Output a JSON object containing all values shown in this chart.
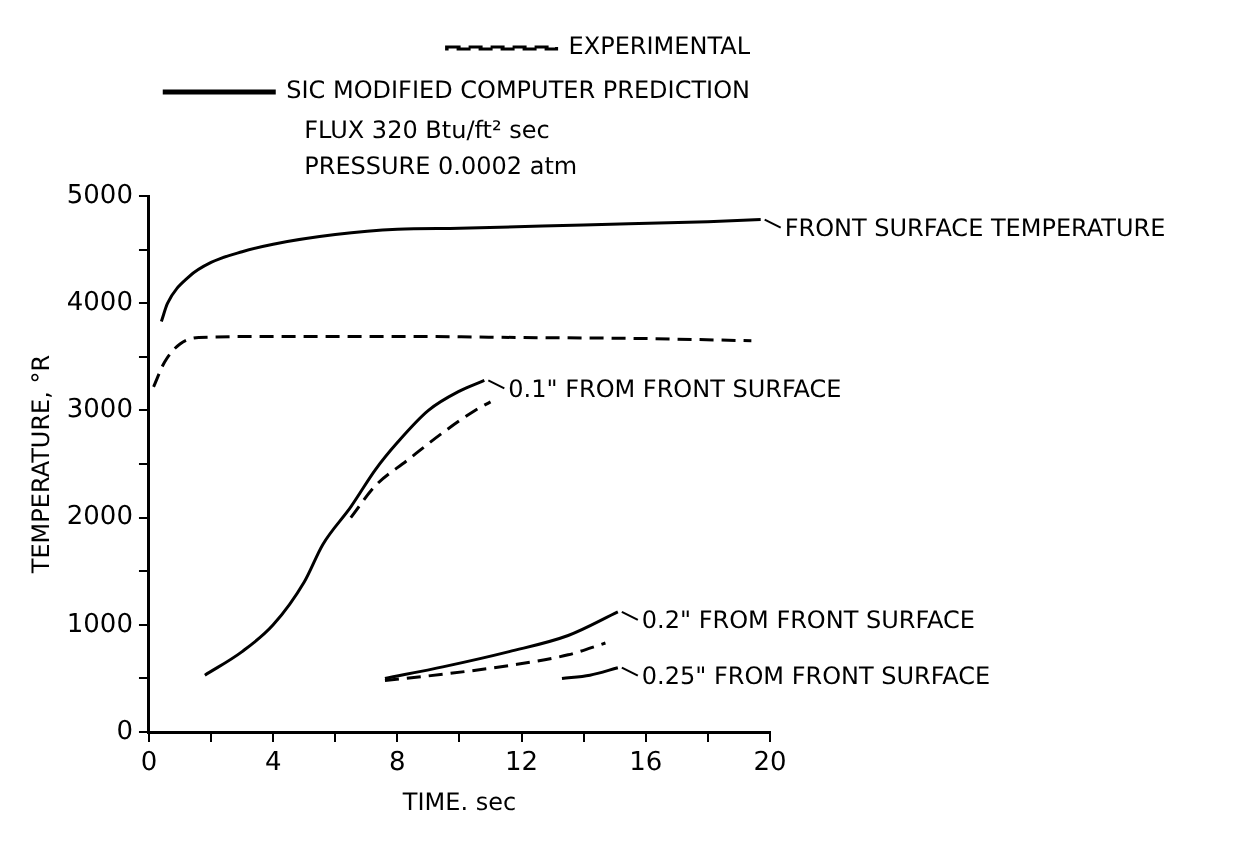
{
  "chart_data": {
    "type": "line",
    "xlabel": "TIME. sec",
    "ylabel": "TEMPERATURE, °R",
    "xlim": [
      0,
      20
    ],
    "xticks": [
      0,
      {
        "value": 2,
        "label": null
      },
      4,
      {
        "value": 6,
        "label": null
      },
      8,
      {
        "value": 10,
        "label": null
      },
      12,
      {
        "value": 14,
        "label": null
      },
      16,
      {
        "value": 18,
        "label": null
      },
      20
    ],
    "ylim": [
      0,
      5000
    ],
    "yticks": [
      0,
      {
        "value": 500,
        "label": null
      },
      1000,
      {
        "value": 1500,
        "label": null
      },
      2000,
      {
        "value": 2500,
        "label": null
      },
      3000,
      {
        "value": 3500,
        "label": null
      },
      4000,
      {
        "value": 4500,
        "label": null
      },
      5000
    ],
    "grid": false,
    "legend": "top right",
    "marker": "none",
    "series": [
      {
        "name": "EXPERIMENTAL",
        "color": "#000000",
        "line_style": "dashed",
        "x": [
          0.15,
          0.5,
          1,
          1.6,
          4,
          8,
          12,
          16,
          19.4
        ],
        "values": [
          3220,
          3450,
          3620,
          3680,
          3690,
          3690,
          3680,
          3670,
          3650
        ]
      },
      {
        "name": "SIC MODIFIED COMPUTER PREDICTION",
        "color": "#000000",
        "line_style": "solid",
        "x": [
          0.4,
          0.6,
          1.3,
          2,
          3,
          4,
          6,
          8,
          10,
          14,
          18,
          19.7
        ],
        "values": [
          3830,
          4000,
          4250,
          4380,
          4480,
          4550,
          4640,
          4690,
          4700,
          4730,
          4760,
          4780
        ]
      },
      {
        "color": "#000000",
        "line_style": "dashed",
        "x": [
          6.5,
          7.3,
          8.3,
          9.5,
          10.5,
          11
        ],
        "values": [
          2000,
          2300,
          2530,
          2800,
          3000,
          3080
        ]
      },
      {
        "color": "#000000",
        "line_style": "solid",
        "x": [
          1.8,
          3,
          4,
          5,
          5.6,
          6.5,
          7.3,
          8,
          9,
          10,
          10.8
        ],
        "values": [
          530,
          750,
          1000,
          1400,
          1750,
          2100,
          2450,
          2700,
          3000,
          3180,
          3280
        ]
      },
      {
        "color": "#000000",
        "line_style": "dashed",
        "x": [
          7.6,
          9.5,
          11.6,
          13.5,
          14.7
        ],
        "values": [
          480,
          540,
          620,
          720,
          830
        ]
      },
      {
        "color": "#000000",
        "line_style": "solid",
        "x": [
          7.6,
          9.5,
          11.6,
          13.5,
          15.1
        ],
        "values": [
          500,
          610,
          750,
          900,
          1120
        ]
      },
      {
        "color": "#000000",
        "line_style": "solid",
        "x": [
          13.3,
          14.2,
          15.1
        ],
        "values": [
          500,
          530,
          600
        ]
      }
    ],
    "annotations": [
      "FLUX 320 Btu/ft² sec",
      "PRESSURE 0.0002 atm",
      {
        "text": "FRONT SURFACE TEMPERATURE",
        "x": 19.7,
        "y": 4780
      },
      {
        "text": "0.1\" FROM FRONT SURFACE",
        "x": 10.8,
        "y": 3280
      },
      {
        "text": "0.2\" FROM FRONT SURFACE",
        "x": 15.1,
        "y": 1120
      },
      {
        "text": "0.25\" FROM FRONT SURFACE",
        "x": 15.1,
        "y": 600
      }
    ]
  }
}
